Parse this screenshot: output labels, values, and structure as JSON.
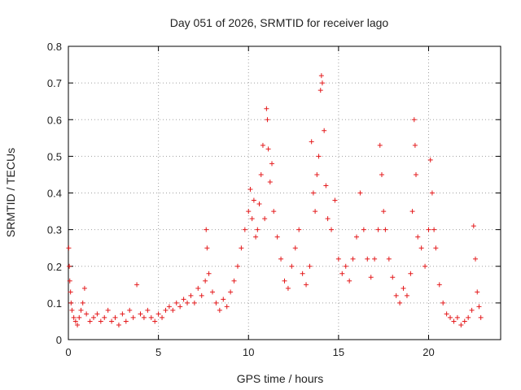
{
  "chart_data": {
    "type": "scatter",
    "title": "Day 051 of 2026, SRMTID for receiver lago",
    "xlabel": "GPS time / hours",
    "ylabel": "SRMTID / TECUs",
    "xlim": [
      0,
      24
    ],
    "ylim": [
      0,
      0.8
    ],
    "xticks": [
      0,
      5,
      10,
      15,
      20
    ],
    "xtick_labels": [
      "0",
      "5",
      "10",
      "15",
      "20"
    ],
    "yticks": [
      0,
      0.1,
      0.2,
      0.3,
      0.4,
      0.5,
      0.6,
      0.7,
      0.8
    ],
    "ytick_labels": [
      "0",
      "0.1",
      "0.2",
      "0.3",
      "0.4",
      "0.5",
      "0.6",
      "0.7",
      "0.8"
    ],
    "grid": true,
    "marker": "+",
    "color": "#e41a1c",
    "series": [
      {
        "name": "SRMTID",
        "points": [
          [
            0.02,
            0.25
          ],
          [
            0.05,
            0.2
          ],
          [
            0.08,
            0.16
          ],
          [
            0.12,
            0.13
          ],
          [
            0.15,
            0.1
          ],
          [
            0.2,
            0.08
          ],
          [
            0.3,
            0.06
          ],
          [
            0.4,
            0.05
          ],
          [
            0.5,
            0.04
          ],
          [
            0.6,
            0.06
          ],
          [
            0.7,
            0.08
          ],
          [
            0.8,
            0.1
          ],
          [
            0.9,
            0.14
          ],
          [
            1.0,
            0.07
          ],
          [
            1.2,
            0.05
          ],
          [
            1.4,
            0.06
          ],
          [
            1.6,
            0.07
          ],
          [
            1.8,
            0.05
          ],
          [
            2.0,
            0.06
          ],
          [
            2.2,
            0.08
          ],
          [
            2.4,
            0.05
          ],
          [
            2.6,
            0.06
          ],
          [
            2.8,
            0.04
          ],
          [
            3.0,
            0.07
          ],
          [
            3.2,
            0.05
          ],
          [
            3.4,
            0.08
          ],
          [
            3.6,
            0.06
          ],
          [
            3.8,
            0.15
          ],
          [
            4.0,
            0.07
          ],
          [
            4.2,
            0.06
          ],
          [
            4.4,
            0.08
          ],
          [
            4.6,
            0.06
          ],
          [
            4.8,
            0.05
          ],
          [
            5.0,
            0.07
          ],
          [
            5.2,
            0.06
          ],
          [
            5.4,
            0.08
          ],
          [
            5.6,
            0.09
          ],
          [
            5.8,
            0.08
          ],
          [
            6.0,
            0.1
          ],
          [
            6.2,
            0.09
          ],
          [
            6.4,
            0.11
          ],
          [
            6.6,
            0.1
          ],
          [
            6.8,
            0.12
          ],
          [
            7.0,
            0.1
          ],
          [
            7.2,
            0.14
          ],
          [
            7.4,
            0.12
          ],
          [
            7.6,
            0.16
          ],
          [
            7.65,
            0.3
          ],
          [
            7.7,
            0.25
          ],
          [
            7.8,
            0.18
          ],
          [
            8.0,
            0.13
          ],
          [
            8.2,
            0.1
          ],
          [
            8.4,
            0.08
          ],
          [
            8.6,
            0.11
          ],
          [
            8.8,
            0.09
          ],
          [
            9.0,
            0.13
          ],
          [
            9.2,
            0.16
          ],
          [
            9.4,
            0.2
          ],
          [
            9.6,
            0.25
          ],
          [
            9.8,
            0.3
          ],
          [
            10.0,
            0.35
          ],
          [
            10.1,
            0.41
          ],
          [
            10.2,
            0.33
          ],
          [
            10.3,
            0.38
          ],
          [
            10.4,
            0.28
          ],
          [
            10.5,
            0.3
          ],
          [
            10.6,
            0.37
          ],
          [
            10.7,
            0.45
          ],
          [
            10.8,
            0.53
          ],
          [
            10.9,
            0.33
          ],
          [
            11.0,
            0.63
          ],
          [
            11.05,
            0.6
          ],
          [
            11.1,
            0.52
          ],
          [
            11.2,
            0.43
          ],
          [
            11.3,
            0.48
          ],
          [
            11.4,
            0.35
          ],
          [
            11.6,
            0.28
          ],
          [
            11.8,
            0.22
          ],
          [
            12.0,
            0.16
          ],
          [
            12.2,
            0.14
          ],
          [
            12.4,
            0.2
          ],
          [
            12.6,
            0.25
          ],
          [
            12.8,
            0.3
          ],
          [
            13.0,
            0.18
          ],
          [
            13.2,
            0.15
          ],
          [
            13.4,
            0.2
          ],
          [
            13.5,
            0.54
          ],
          [
            13.6,
            0.4
          ],
          [
            13.7,
            0.35
          ],
          [
            13.8,
            0.45
          ],
          [
            13.9,
            0.5
          ],
          [
            14.0,
            0.68
          ],
          [
            14.05,
            0.72
          ],
          [
            14.1,
            0.7
          ],
          [
            14.2,
            0.57
          ],
          [
            14.3,
            0.42
          ],
          [
            14.4,
            0.33
          ],
          [
            14.6,
            0.3
          ],
          [
            14.8,
            0.38
          ],
          [
            15.0,
            0.22
          ],
          [
            15.2,
            0.18
          ],
          [
            15.4,
            0.2
          ],
          [
            15.6,
            0.16
          ],
          [
            15.8,
            0.22
          ],
          [
            16.0,
            0.28
          ],
          [
            16.2,
            0.4
          ],
          [
            16.4,
            0.3
          ],
          [
            16.6,
            0.22
          ],
          [
            16.8,
            0.17
          ],
          [
            17.0,
            0.22
          ],
          [
            17.2,
            0.3
          ],
          [
            17.3,
            0.53
          ],
          [
            17.4,
            0.45
          ],
          [
            17.5,
            0.35
          ],
          [
            17.6,
            0.3
          ],
          [
            17.8,
            0.22
          ],
          [
            18.0,
            0.17
          ],
          [
            18.2,
            0.12
          ],
          [
            18.4,
            0.1
          ],
          [
            18.6,
            0.14
          ],
          [
            18.8,
            0.12
          ],
          [
            19.0,
            0.18
          ],
          [
            19.1,
            0.35
          ],
          [
            19.2,
            0.6
          ],
          [
            19.25,
            0.53
          ],
          [
            19.3,
            0.45
          ],
          [
            19.4,
            0.28
          ],
          [
            19.6,
            0.25
          ],
          [
            19.8,
            0.2
          ],
          [
            20.0,
            0.3
          ],
          [
            20.1,
            0.49
          ],
          [
            20.2,
            0.4
          ],
          [
            20.3,
            0.3
          ],
          [
            20.4,
            0.25
          ],
          [
            20.6,
            0.15
          ],
          [
            20.8,
            0.1
          ],
          [
            21.0,
            0.07
          ],
          [
            21.2,
            0.06
          ],
          [
            21.4,
            0.05
          ],
          [
            21.6,
            0.06
          ],
          [
            21.8,
            0.04
          ],
          [
            22.0,
            0.05
          ],
          [
            22.2,
            0.06
          ],
          [
            22.4,
            0.08
          ],
          [
            22.5,
            0.31
          ],
          [
            22.6,
            0.22
          ],
          [
            22.7,
            0.13
          ],
          [
            22.8,
            0.09
          ],
          [
            22.9,
            0.06
          ]
        ]
      }
    ]
  }
}
